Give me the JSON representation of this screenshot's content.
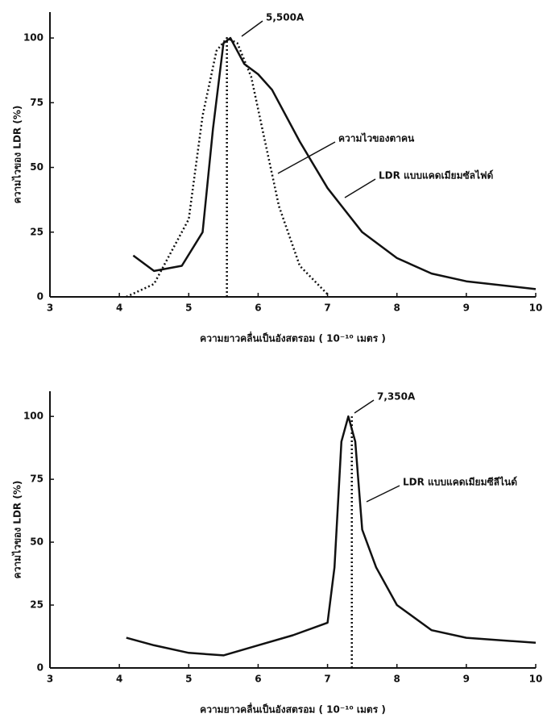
{
  "chart_data": [
    {
      "type": "line",
      "ylabel": "ความไวของ LDR (%)",
      "xlabel": "ความยาวคลื่นเป็นอังสตรอม ( 10⁻¹⁰ เมตร )",
      "annotations": [
        "5,500A"
      ],
      "vline": 5.55,
      "xlim": [
        3,
        10
      ],
      "xticks": [
        3,
        4,
        5,
        6,
        7,
        8,
        9,
        10
      ],
      "ylim": [
        0,
        110
      ],
      "yticks": [
        0,
        25,
        50,
        75,
        100
      ],
      "series": [
        {
          "name": "ความไวของตาคน",
          "color": "#111111",
          "style": "dotted",
          "x": [
            4.1,
            4.5,
            5.0,
            5.2,
            5.4,
            5.55,
            5.7,
            5.9,
            6.1,
            6.3,
            6.6,
            7.0
          ],
          "values": [
            0,
            5,
            30,
            70,
            95,
            100,
            98,
            85,
            60,
            35,
            12,
            1
          ]
        },
        {
          "name": "LDR แบบแคดเมียมซัลไฟด์",
          "color": "#111111",
          "style": "solid",
          "x": [
            4.2,
            4.5,
            4.9,
            5.2,
            5.35,
            5.5,
            5.6,
            5.8,
            6.0,
            6.2,
            6.6,
            7.0,
            7.5,
            8.0,
            8.5,
            9.0,
            10.0
          ],
          "values": [
            16,
            10,
            12,
            25,
            65,
            98,
            100,
            90,
            86,
            80,
            60,
            42,
            25,
            15,
            9,
            6,
            3
          ]
        }
      ]
    },
    {
      "type": "line",
      "ylabel": "ความไวของ LDR (%)",
      "xlabel": "ความยาวคลื่นเป็นอังสตรอม ( 10⁻¹⁰ เมตร )",
      "annotations": [
        "7,350A"
      ],
      "vline": 7.35,
      "xlim": [
        3,
        10
      ],
      "xticks": [
        3,
        4,
        5,
        6,
        7,
        8,
        9,
        10
      ],
      "ylim": [
        0,
        110
      ],
      "yticks": [
        0,
        25,
        50,
        75,
        100
      ],
      "series": [
        {
          "name": "LDR แบบแคดเมียมซีลีไนด์",
          "color": "#111111",
          "style": "solid",
          "x": [
            4.1,
            4.5,
            5.0,
            5.5,
            6.0,
            6.5,
            7.0,
            7.1,
            7.2,
            7.3,
            7.4,
            7.5,
            7.7,
            8.0,
            8.5,
            9.0,
            10.0
          ],
          "values": [
            12,
            9,
            6,
            5,
            9,
            13,
            18,
            40,
            90,
            100,
            90,
            55,
            40,
            25,
            15,
            12,
            10
          ]
        }
      ]
    }
  ]
}
